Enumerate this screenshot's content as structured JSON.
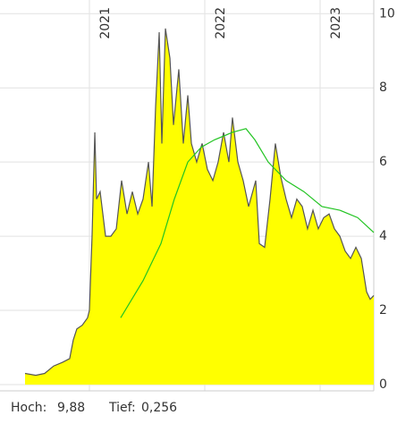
{
  "chart_data": {
    "type": "area",
    "xlim": [
      2020.442,
      2023.465
    ],
    "xticks": [
      2021,
      2022,
      2023
    ],
    "ylim": [
      -0.17,
      10.2
    ],
    "yticks": [
      0,
      2,
      4,
      6,
      8,
      10
    ],
    "grid": true,
    "series": [
      {
        "kind": "area",
        "color": "#ffff00",
        "line_color": "#555555",
        "x": [
          2020.442,
          2020.535,
          2020.612,
          2020.69,
          2020.767,
          2020.829,
          2020.86,
          2020.891,
          2020.938,
          2020.984,
          2021.0,
          2021.023,
          2021.047,
          2021.062,
          2021.093,
          2021.14,
          2021.186,
          2021.233,
          2021.279,
          2021.326,
          2021.372,
          2021.419,
          2021.465,
          2021.512,
          2021.543,
          2021.574,
          2021.605,
          2021.628,
          2021.659,
          2021.698,
          2021.729,
          2021.775,
          2021.814,
          2021.853,
          2021.884,
          2021.93,
          2021.977,
          2022.023,
          2022.07,
          2022.116,
          2022.163,
          2022.209,
          2022.24,
          2022.287,
          2022.333,
          2022.38,
          2022.442,
          2022.473,
          2022.519,
          2022.566,
          2022.612,
          2022.659,
          2022.705,
          2022.752,
          2022.798,
          2022.845,
          2022.891,
          2022.938,
          2022.984,
          2023.031,
          2023.078,
          2023.124,
          2023.171,
          2023.217,
          2023.264,
          2023.31,
          2023.357,
          2023.403,
          2023.434,
          2023.465
        ],
        "values": [
          0.3,
          0.25,
          0.3,
          0.5,
          0.6,
          0.7,
          1.2,
          1.5,
          1.6,
          1.8,
          2.0,
          4.0,
          6.8,
          5.0,
          5.2,
          4.0,
          4.0,
          4.2,
          5.5,
          4.6,
          5.2,
          4.6,
          5.0,
          6.0,
          4.8,
          7.5,
          9.5,
          6.5,
          9.6,
          8.8,
          7.0,
          8.5,
          6.5,
          7.8,
          6.5,
          6.0,
          6.5,
          5.8,
          5.5,
          6.0,
          6.8,
          6.0,
          7.2,
          6.0,
          5.5,
          4.8,
          5.5,
          3.8,
          3.7,
          5.0,
          6.5,
          5.6,
          5.0,
          4.5,
          5.0,
          4.8,
          4.2,
          4.7,
          4.2,
          4.5,
          4.6,
          4.2,
          4.0,
          3.6,
          3.4,
          3.7,
          3.4,
          2.5,
          2.3,
          2.4
        ]
      },
      {
        "kind": "line",
        "color": "#22c422",
        "x": [
          2021.271,
          2021.465,
          2021.62,
          2021.736,
          2021.853,
          2021.969,
          2022.085,
          2022.24,
          2022.357,
          2022.434,
          2022.55,
          2022.705,
          2022.86,
          2023.016,
          2023.171,
          2023.326,
          2023.465
        ],
        "values": [
          1.8,
          2.8,
          3.8,
          5.0,
          6.0,
          6.4,
          6.6,
          6.8,
          6.9,
          6.6,
          6.0,
          5.5,
          5.2,
          4.8,
          4.7,
          4.5,
          4.1
        ]
      }
    ],
    "stats": {
      "high_label": "Hoch:",
      "high": "9,88",
      "low_label": "Tief:",
      "low": "0,256"
    }
  }
}
